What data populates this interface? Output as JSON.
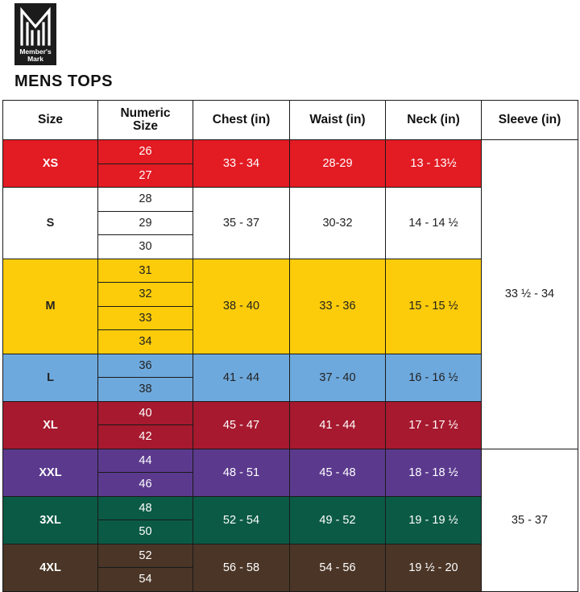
{
  "brand": {
    "logo_line1": "Member's",
    "logo_line2": "Mark",
    "logo_symbol": "M-monogram-icon",
    "logo_bg": "#1b1b1b"
  },
  "title": "MENS TOPS",
  "table": {
    "headers": {
      "size": "Size",
      "numeric_line1": "Numeric",
      "numeric_line2": "Size",
      "chest": "Chest (in)",
      "waist": "Waist (in)",
      "neck": "Neck (in)",
      "sleeve": "Sleeve (in)"
    },
    "groups": [
      {
        "size": "XS",
        "numeric": [
          "26",
          "27"
        ],
        "chest": "33 - 34",
        "waist": "28-29",
        "neck": "13 - 13½",
        "color": "#e31b23",
        "text": "light"
      },
      {
        "size": "S",
        "numeric": [
          "28",
          "29",
          "30"
        ],
        "chest": "35 - 37",
        "waist": "30-32",
        "neck": "14 - 14 ½",
        "color": "#ffffff",
        "text": "dark"
      },
      {
        "size": "M",
        "numeric": [
          "31",
          "32",
          "33",
          "34"
        ],
        "chest": "38 - 40",
        "waist": "33 - 36",
        "neck": "15 - 15 ½",
        "color": "#fccc0a",
        "text": "dark"
      },
      {
        "size": "L",
        "numeric": [
          "36",
          "38"
        ],
        "chest": "41 - 44",
        "waist": "37 - 40",
        "neck": "16 - 16 ½",
        "color": "#6ea9dd",
        "text": "dark"
      },
      {
        "size": "XL",
        "numeric": [
          "40",
          "42"
        ],
        "chest": "45 - 47",
        "waist": "41 - 44",
        "neck": "17 - 17 ½",
        "color": "#a6192e",
        "text": "light"
      },
      {
        "size": "XXL",
        "numeric": [
          "44",
          "46"
        ],
        "chest": "48 - 51",
        "waist": "45 - 48",
        "neck": "18 - 18 ½",
        "color": "#5b3a8e",
        "text": "light"
      },
      {
        "size": "3XL",
        "numeric": [
          "48",
          "50"
        ],
        "chest": "52 - 54",
        "waist": "49 - 52",
        "neck": "19 - 19 ½",
        "color": "#0b5a45",
        "text": "light"
      },
      {
        "size": "4XL",
        "numeric": [
          "52",
          "54"
        ],
        "chest": "56 - 58",
        "waist": "54 - 56",
        "neck": "19 ½ - 20",
        "color": "#4a3526",
        "text": "light"
      }
    ],
    "sleeve": [
      {
        "value": "33 ½ - 34",
        "covers_groups": 5
      },
      {
        "value": "35 - 37",
        "covers_groups": 3
      }
    ]
  }
}
